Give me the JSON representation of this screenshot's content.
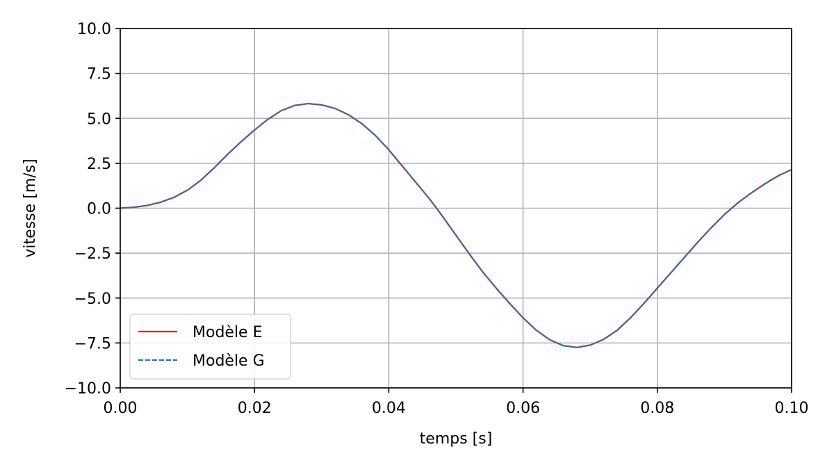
{
  "chart_data": {
    "type": "line",
    "title": "",
    "xlabel": "temps [s]",
    "ylabel": "vitesse [m/s]",
    "xlim": [
      0.0,
      0.1
    ],
    "ylim": [
      -10.0,
      10.0
    ],
    "grid": true,
    "legend_position": "lower-left",
    "x_ticks": [
      0.0,
      0.02,
      0.04,
      0.06,
      0.08,
      0.1
    ],
    "x_tick_labels": [
      "0.00",
      "0.02",
      "0.04",
      "0.06",
      "0.08",
      "0.10"
    ],
    "y_ticks": [
      -10.0,
      -7.5,
      -5.0,
      -2.5,
      0.0,
      2.5,
      5.0,
      7.5,
      10.0
    ],
    "y_tick_labels": [
      "−10.0",
      "−7.5",
      "−5.0",
      "−2.5",
      "0.0",
      "2.5",
      "5.0",
      "7.5",
      "10.0"
    ],
    "x": [
      0.0,
      0.002,
      0.004,
      0.006,
      0.008,
      0.01,
      0.012,
      0.014,
      0.016,
      0.018,
      0.02,
      0.022,
      0.024,
      0.026,
      0.028,
      0.03,
      0.032,
      0.034,
      0.036,
      0.038,
      0.04,
      0.042,
      0.044,
      0.046,
      0.048,
      0.05,
      0.052,
      0.054,
      0.056,
      0.058,
      0.06,
      0.062,
      0.064,
      0.066,
      0.068,
      0.07,
      0.072,
      0.074,
      0.076,
      0.078,
      0.08,
      0.082,
      0.084,
      0.086,
      0.088,
      0.09,
      0.092,
      0.094,
      0.096,
      0.098,
      0.1
    ],
    "series": [
      {
        "name": "Modèle E",
        "color": "#d62728",
        "dash": "solid",
        "values": [
          0.0,
          0.05,
          0.15,
          0.33,
          0.6,
          1.0,
          1.55,
          2.25,
          3.0,
          3.7,
          4.35,
          4.95,
          5.43,
          5.72,
          5.82,
          5.75,
          5.55,
          5.2,
          4.7,
          4.05,
          3.25,
          2.35,
          1.45,
          0.55,
          -0.45,
          -1.5,
          -2.55,
          -3.55,
          -4.45,
          -5.3,
          -6.1,
          -6.8,
          -7.33,
          -7.65,
          -7.75,
          -7.62,
          -7.3,
          -6.8,
          -6.1,
          -5.3,
          -4.45,
          -3.6,
          -2.75,
          -1.9,
          -1.1,
          -0.35,
          0.3,
          0.85,
          1.35,
          1.8,
          2.15
        ]
      },
      {
        "name": "Modèle G",
        "color": "#1f77b4",
        "dash": "dashed",
        "values": [
          0.0,
          0.05,
          0.15,
          0.33,
          0.6,
          1.0,
          1.55,
          2.25,
          3.0,
          3.7,
          4.35,
          4.95,
          5.43,
          5.72,
          5.82,
          5.75,
          5.55,
          5.2,
          4.7,
          4.05,
          3.25,
          2.35,
          1.45,
          0.55,
          -0.45,
          -1.5,
          -2.55,
          -3.55,
          -4.45,
          -5.3,
          -6.1,
          -6.8,
          -7.33,
          -7.65,
          -7.75,
          -7.62,
          -7.3,
          -6.8,
          -6.1,
          -5.3,
          -4.45,
          -3.6,
          -2.75,
          -1.9,
          -1.1,
          -0.35,
          0.3,
          0.85,
          1.35,
          1.8,
          2.15
        ]
      }
    ]
  }
}
